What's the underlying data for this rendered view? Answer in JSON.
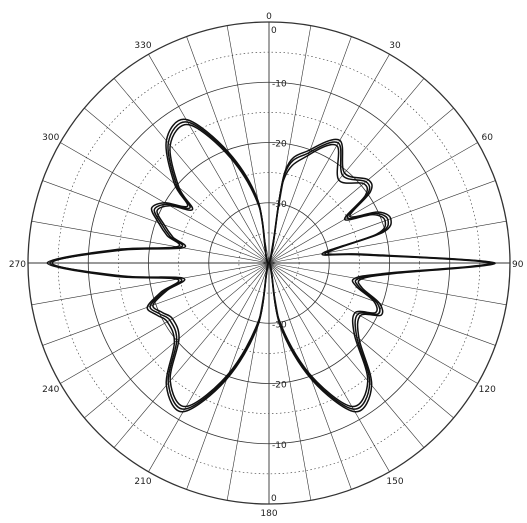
{
  "chart_data": {
    "type": "polar",
    "title": "",
    "angle_ticks": [
      "0",
      "30",
      "60",
      "90",
      "120",
      "150",
      "180",
      "210",
      "240",
      "270",
      "300",
      "330"
    ],
    "radial_ticks": [
      {
        "value": -10,
        "label": "-10"
      },
      {
        "value": -20,
        "label": "-20"
      },
      {
        "value": -30,
        "label": "-30"
      }
    ],
    "radial_range": [
      -40,
      0
    ],
    "angular_grid_step_deg": 10,
    "grid": true,
    "colors": {
      "line": "#111111",
      "grid": "#333333"
    },
    "series": [
      {
        "angle_deg": [
          0,
          10,
          20,
          30,
          40,
          50,
          55,
          60,
          65,
          70,
          75,
          80,
          85,
          90,
          95,
          100,
          105,
          110,
          115,
          120,
          130,
          140,
          150,
          160,
          170,
          180,
          190,
          200,
          210,
          220,
          230,
          240,
          245,
          250,
          255,
          260,
          265,
          270,
          275,
          280,
          285,
          290,
          295,
          300,
          305,
          310,
          320,
          330,
          340,
          350,
          360
        ],
        "value": [
          -40,
          -25,
          -20.5,
          -17,
          -21,
          -19,
          -20,
          -25,
          -20.5,
          -19,
          -21,
          -30.5,
          -24,
          -2.8,
          -20,
          -25,
          -24.5,
          -21,
          -20,
          -23,
          -21,
          -14,
          -12,
          -20,
          -30,
          -40,
          -30,
          -20,
          -12,
          -14,
          -20,
          -21,
          -20,
          -19,
          -22,
          -25,
          -15,
          -4,
          -15,
          -25,
          -23,
          -21,
          -19,
          -20.5,
          -24,
          -20,
          -14,
          -13,
          -21,
          -30,
          -40
        ]
      },
      {
        "angle_deg": [
          0,
          10,
          20,
          30,
          40,
          50,
          55,
          60,
          65,
          70,
          75,
          80,
          85,
          90,
          95,
          100,
          105,
          110,
          115,
          120,
          130,
          140,
          150,
          160,
          170,
          180,
          190,
          200,
          210,
          220,
          230,
          240,
          245,
          250,
          255,
          260,
          265,
          270,
          275,
          280,
          285,
          290,
          295,
          300,
          305,
          310,
          320,
          330,
          340,
          350,
          360
        ],
        "value": [
          -40,
          -26,
          -21,
          -17.5,
          -22,
          -19.5,
          -20.5,
          -25.5,
          -21,
          -19.5,
          -21.5,
          -31,
          -24.5,
          -3.3,
          -20.5,
          -25.5,
          -25,
          -21.5,
          -20.5,
          -23.5,
          -21.5,
          -14.5,
          -12.5,
          -20.5,
          -30.5,
          -40,
          -30.5,
          -20.5,
          -12.5,
          -14.5,
          -20.5,
          -21.5,
          -20.5,
          -19.5,
          -22.5,
          -25.5,
          -15.5,
          -3.6,
          -15.5,
          -25.5,
          -23.5,
          -21.5,
          -19.5,
          -21,
          -24.5,
          -20.5,
          -14.5,
          -13.5,
          -21.5,
          -30.5,
          -40
        ]
      },
      {
        "angle_deg": [
          0,
          10,
          20,
          30,
          40,
          50,
          55,
          60,
          65,
          70,
          75,
          80,
          85,
          90,
          95,
          100,
          105,
          110,
          115,
          120,
          130,
          140,
          150,
          160,
          170,
          180,
          190,
          200,
          210,
          220,
          230,
          240,
          245,
          250,
          255,
          260,
          265,
          270,
          275,
          280,
          285,
          290,
          295,
          300,
          305,
          310,
          320,
          330,
          340,
          350,
          360
        ],
        "value": [
          -40,
          -24.5,
          -20,
          -16.5,
          -20.5,
          -18.5,
          -19.5,
          -24.5,
          -20,
          -18.5,
          -20.5,
          -30,
          -23.5,
          -2.5,
          -19.5,
          -24.5,
          -24,
          -20.5,
          -19.5,
          -22.5,
          -20.5,
          -13.5,
          -11.5,
          -19.5,
          -29.5,
          -40,
          -29.5,
          -19.5,
          -11.5,
          -13.5,
          -19.5,
          -20.5,
          -19.5,
          -18.5,
          -21.5,
          -24.5,
          -14.5,
          -3.2,
          -14.5,
          -24.5,
          -22.5,
          -20.5,
          -18.5,
          -20,
          -23.5,
          -19.5,
          -13.5,
          -12.5,
          -20.5,
          -29.5,
          -40
        ]
      }
    ]
  }
}
